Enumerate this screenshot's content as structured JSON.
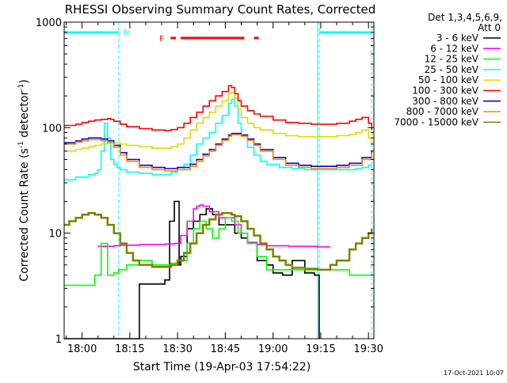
{
  "chart_data": {
    "type": "line",
    "title": "RHESSI Observing Summary Count Rates, Corrected",
    "xlabel": "Start Time (19-Apr-03 17:54:22)",
    "ylabel": "Corrected Count Rate (s",
    "ylabel_sup1": "-1",
    "ylabel_mid": " detector",
    "ylabel_sup2": "-1",
    "ylabel_end": ")",
    "x_ticks": [
      "18:00",
      "18:15",
      "18:30",
      "18:45",
      "19:00",
      "19:15",
      "19:30"
    ],
    "x_tick_minutes": [
      0,
      15,
      30,
      45,
      60,
      75,
      90
    ],
    "x_range_minutes": [
      -5.63,
      91.7
    ],
    "y_ticks": [
      "1",
      "10",
      "100",
      "1000"
    ],
    "y_tick_values": [
      1,
      10,
      100,
      1000
    ],
    "ylim": [
      1,
      1000
    ],
    "log_y": true,
    "stamp": "17-Oct-2021 10:07",
    "legend": {
      "header": [
        "Det 1,3,4,5,6,9,",
        "Att 0"
      ],
      "entries": [
        {
          "label": "3 - 6 keV",
          "color": "#000000"
        },
        {
          "label": "6 - 12 keV",
          "color": "#ff00ff"
        },
        {
          "label": "12 - 25 keV",
          "color": "#00ff00"
        },
        {
          "label": "25 - 50 keV",
          "color": "#00ffff"
        },
        {
          "label": "50 - 100 keV",
          "color": "#dddd00"
        },
        {
          "label": "100 - 300 keV",
          "color": "#ff0000"
        },
        {
          "label": "300 - 800 keV",
          "color": "#0000cc"
        },
        {
          "label": "800 - 7000 keV",
          "color": "#ff8800"
        },
        {
          "label": "7000 - 15000 keV",
          "color": "#808000"
        }
      ]
    },
    "flags": {
      "night_label": "N",
      "flare_label": "F",
      "night_periods": [
        [
          -5.6,
          11.5
        ],
        [
          74.5,
          91.0
        ]
      ],
      "flare_periods": [
        [
          27.8,
          29.5
        ],
        [
          31.0,
          51.0
        ],
        [
          54.0,
          55.5
        ]
      ],
      "boundaries": [
        11.5,
        74.0,
        74.5,
        91.0
      ]
    },
    "series": [
      {
        "name": "3 - 6 keV",
        "color": "#000000",
        "x": [
          -5.6,
          11.4,
          11.8,
          14,
          18,
          22,
          26,
          27.5,
          29,
          30.5,
          31,
          33,
          35,
          37,
          39,
          41,
          43,
          46,
          48,
          50,
          52,
          55,
          58,
          60,
          63,
          66,
          70,
          73,
          74.5
        ],
        "y": [
          0,
          0,
          0,
          0,
          3.3,
          3.3,
          3.6,
          13,
          20,
          5,
          6,
          11,
          13,
          15,
          17,
          15,
          12,
          12,
          10,
          9,
          8,
          5.5,
          5,
          4.2,
          4,
          5.5,
          4.2,
          4,
          0
        ]
      },
      {
        "name": "6 - 12 keV",
        "color": "#ff00ff",
        "x": [
          5,
          7,
          8,
          10,
          12,
          14,
          18,
          22,
          26,
          29,
          31,
          33,
          35,
          36,
          37,
          38,
          40,
          43,
          45,
          48,
          50,
          52,
          55,
          58,
          62,
          65,
          70,
          74,
          78
        ],
        "y": [
          7.5,
          7.5,
          7.5,
          7.6,
          7.7,
          7.7,
          7.8,
          7.8,
          7.9,
          8,
          9.5,
          13,
          17,
          18,
          18.5,
          18,
          16,
          14,
          14,
          12,
          10,
          8.2,
          7.8,
          7.6,
          7.6,
          7.5,
          7.5,
          7.4,
          7.4
        ]
      },
      {
        "name": "12 - 25 keV",
        "color": "#00ff00",
        "x": [
          -5.6,
          -3,
          0,
          2,
          4,
          6,
          8,
          10,
          11.5,
          14,
          18,
          22,
          26,
          28,
          30,
          33,
          35,
          37,
          39,
          41,
          43,
          45,
          47,
          49,
          52,
          55,
          58,
          60,
          62,
          65,
          68,
          72,
          75,
          78,
          80,
          84,
          88,
          91
        ],
        "y": [
          3.2,
          3.2,
          3.2,
          3.2,
          4,
          8,
          4,
          4.2,
          4.5,
          5,
          5.5,
          5,
          5,
          5.2,
          5.5,
          8,
          11,
          13,
          11,
          9,
          11,
          14,
          13,
          10,
          8,
          6,
          4.5,
          4.5,
          4.5,
          4.5,
          4.5,
          4.5,
          4.5,
          4.5,
          4.5,
          4,
          4,
          4
        ]
      },
      {
        "name": "25 - 50 keV",
        "color": "#00ffff",
        "x": [
          -5.6,
          -2,
          2,
          4,
          5,
          6,
          7,
          8,
          9,
          10,
          11,
          12,
          14,
          18,
          22,
          26,
          28,
          30,
          32,
          34,
          36,
          38,
          40,
          42,
          44,
          46,
          47,
          48,
          49,
          50,
          52,
          54,
          56,
          58,
          62,
          66,
          70,
          74,
          78,
          82,
          86,
          88,
          90,
          91
        ],
        "y": [
          32,
          34,
          36,
          37,
          40,
          60,
          110,
          80,
          50,
          45,
          42,
          40,
          38,
          37,
          36,
          36,
          38,
          40,
          45,
          55,
          70,
          80,
          90,
          110,
          130,
          170,
          185,
          160,
          110,
          85,
          65,
          55,
          48,
          45,
          42,
          41,
          40,
          40,
          40,
          40,
          41,
          42,
          44,
          45
        ]
      },
      {
        "name": "50 - 100 keV",
        "color": "#dddd00",
        "x": [
          -5.6,
          -2,
          0,
          2,
          4,
          6,
          8,
          10,
          12,
          14,
          18,
          22,
          26,
          28,
          30,
          32,
          34,
          36,
          38,
          40,
          42,
          44,
          46,
          47,
          48,
          49,
          50,
          52,
          54,
          56,
          60,
          64,
          68,
          72,
          76,
          80,
          84,
          86,
          88,
          90,
          91
        ],
        "y": [
          60,
          62,
          64,
          66,
          68,
          70,
          72,
          72,
          70,
          68,
          66,
          64,
          64,
          66,
          70,
          80,
          95,
          110,
          125,
          140,
          160,
          180,
          210,
          215,
          190,
          150,
          125,
          110,
          100,
          95,
          88,
          84,
          82,
          82,
          82,
          84,
          86,
          90,
          95,
          80,
          70
        ]
      },
      {
        "name": "100 - 300 keV",
        "color": "#ff0000",
        "x": [
          -5.6,
          -2,
          0,
          2,
          4,
          6,
          8,
          9,
          10,
          12,
          14,
          18,
          22,
          26,
          28,
          30,
          32,
          34,
          36,
          38,
          40,
          42,
          44,
          46,
          47,
          48,
          49,
          50,
          52,
          54,
          56,
          60,
          64,
          68,
          72,
          76,
          80,
          84,
          86,
          88,
          90,
          91
        ],
        "y": [
          105,
          108,
          112,
          115,
          118,
          120,
          122,
          120,
          115,
          108,
          102,
          98,
          95,
          94,
          96,
          100,
          110,
          125,
          140,
          160,
          180,
          200,
          220,
          250,
          240,
          210,
          180,
          160,
          145,
          135,
          128,
          118,
          112,
          110,
          108,
          108,
          110,
          115,
          120,
          125,
          110,
          95
        ]
      },
      {
        "name": "300 - 800 keV",
        "color": "#0000cc",
        "x": [
          -5.6,
          -2,
          0,
          2,
          4,
          6,
          8,
          10,
          12,
          14,
          18,
          22,
          26,
          30,
          34,
          36,
          38,
          40,
          42,
          44,
          46,
          47,
          48,
          50,
          52,
          54,
          56,
          60,
          64,
          68,
          72,
          76,
          80,
          84,
          88,
          91
        ],
        "y": [
          72,
          75,
          78,
          80,
          80,
          78,
          75,
          68,
          58,
          50,
          44,
          42,
          41,
          42,
          45,
          50,
          56,
          62,
          70,
          78,
          85,
          88,
          88,
          85,
          78,
          70,
          62,
          52,
          46,
          44,
          43,
          43,
          44,
          46,
          52,
          60
        ]
      },
      {
        "name": "800 - 7000 keV",
        "color": "#ff8800",
        "x": [
          -5.6,
          -2,
          0,
          2,
          4,
          6,
          8,
          10,
          12,
          14,
          18,
          22,
          26,
          30,
          34,
          36,
          38,
          40,
          42,
          44,
          46,
          47,
          48,
          50,
          52,
          54,
          56,
          60,
          64,
          68,
          72,
          76,
          80,
          84,
          88,
          91
        ],
        "y": [
          70,
          73,
          75,
          77,
          77,
          75,
          72,
          65,
          55,
          48,
          42,
          40,
          39,
          40,
          43,
          48,
          54,
          60,
          68,
          76,
          83,
          86,
          86,
          83,
          76,
          68,
          60,
          50,
          44,
          42,
          41,
          41,
          42,
          44,
          50,
          58
        ]
      },
      {
        "name": "7000 - 15000 keV",
        "color": "#808000",
        "x": [
          -5.6,
          -4,
          -2,
          0,
          2,
          4,
          6,
          8,
          10,
          12,
          14,
          16,
          18,
          22,
          26,
          28,
          30,
          32,
          34,
          36,
          38,
          40,
          42,
          44,
          46,
          47,
          48,
          50,
          52,
          54,
          56,
          58,
          60,
          62,
          64,
          66,
          70,
          74,
          78,
          80,
          84,
          86,
          88,
          90,
          91
        ],
        "y": [
          12,
          13,
          14,
          15,
          15.5,
          15,
          14,
          12,
          10,
          8,
          6.5,
          5.5,
          5,
          4.8,
          4.8,
          5,
          5.5,
          6.5,
          8,
          10,
          12,
          13.5,
          15,
          15.5,
          15.5,
          15,
          14.5,
          13,
          11,
          9.5,
          8,
          7,
          6,
          5.5,
          5,
          4.7,
          4.6,
          4.5,
          5,
          5.5,
          7,
          8,
          9,
          10,
          11
        ]
      }
    ]
  }
}
